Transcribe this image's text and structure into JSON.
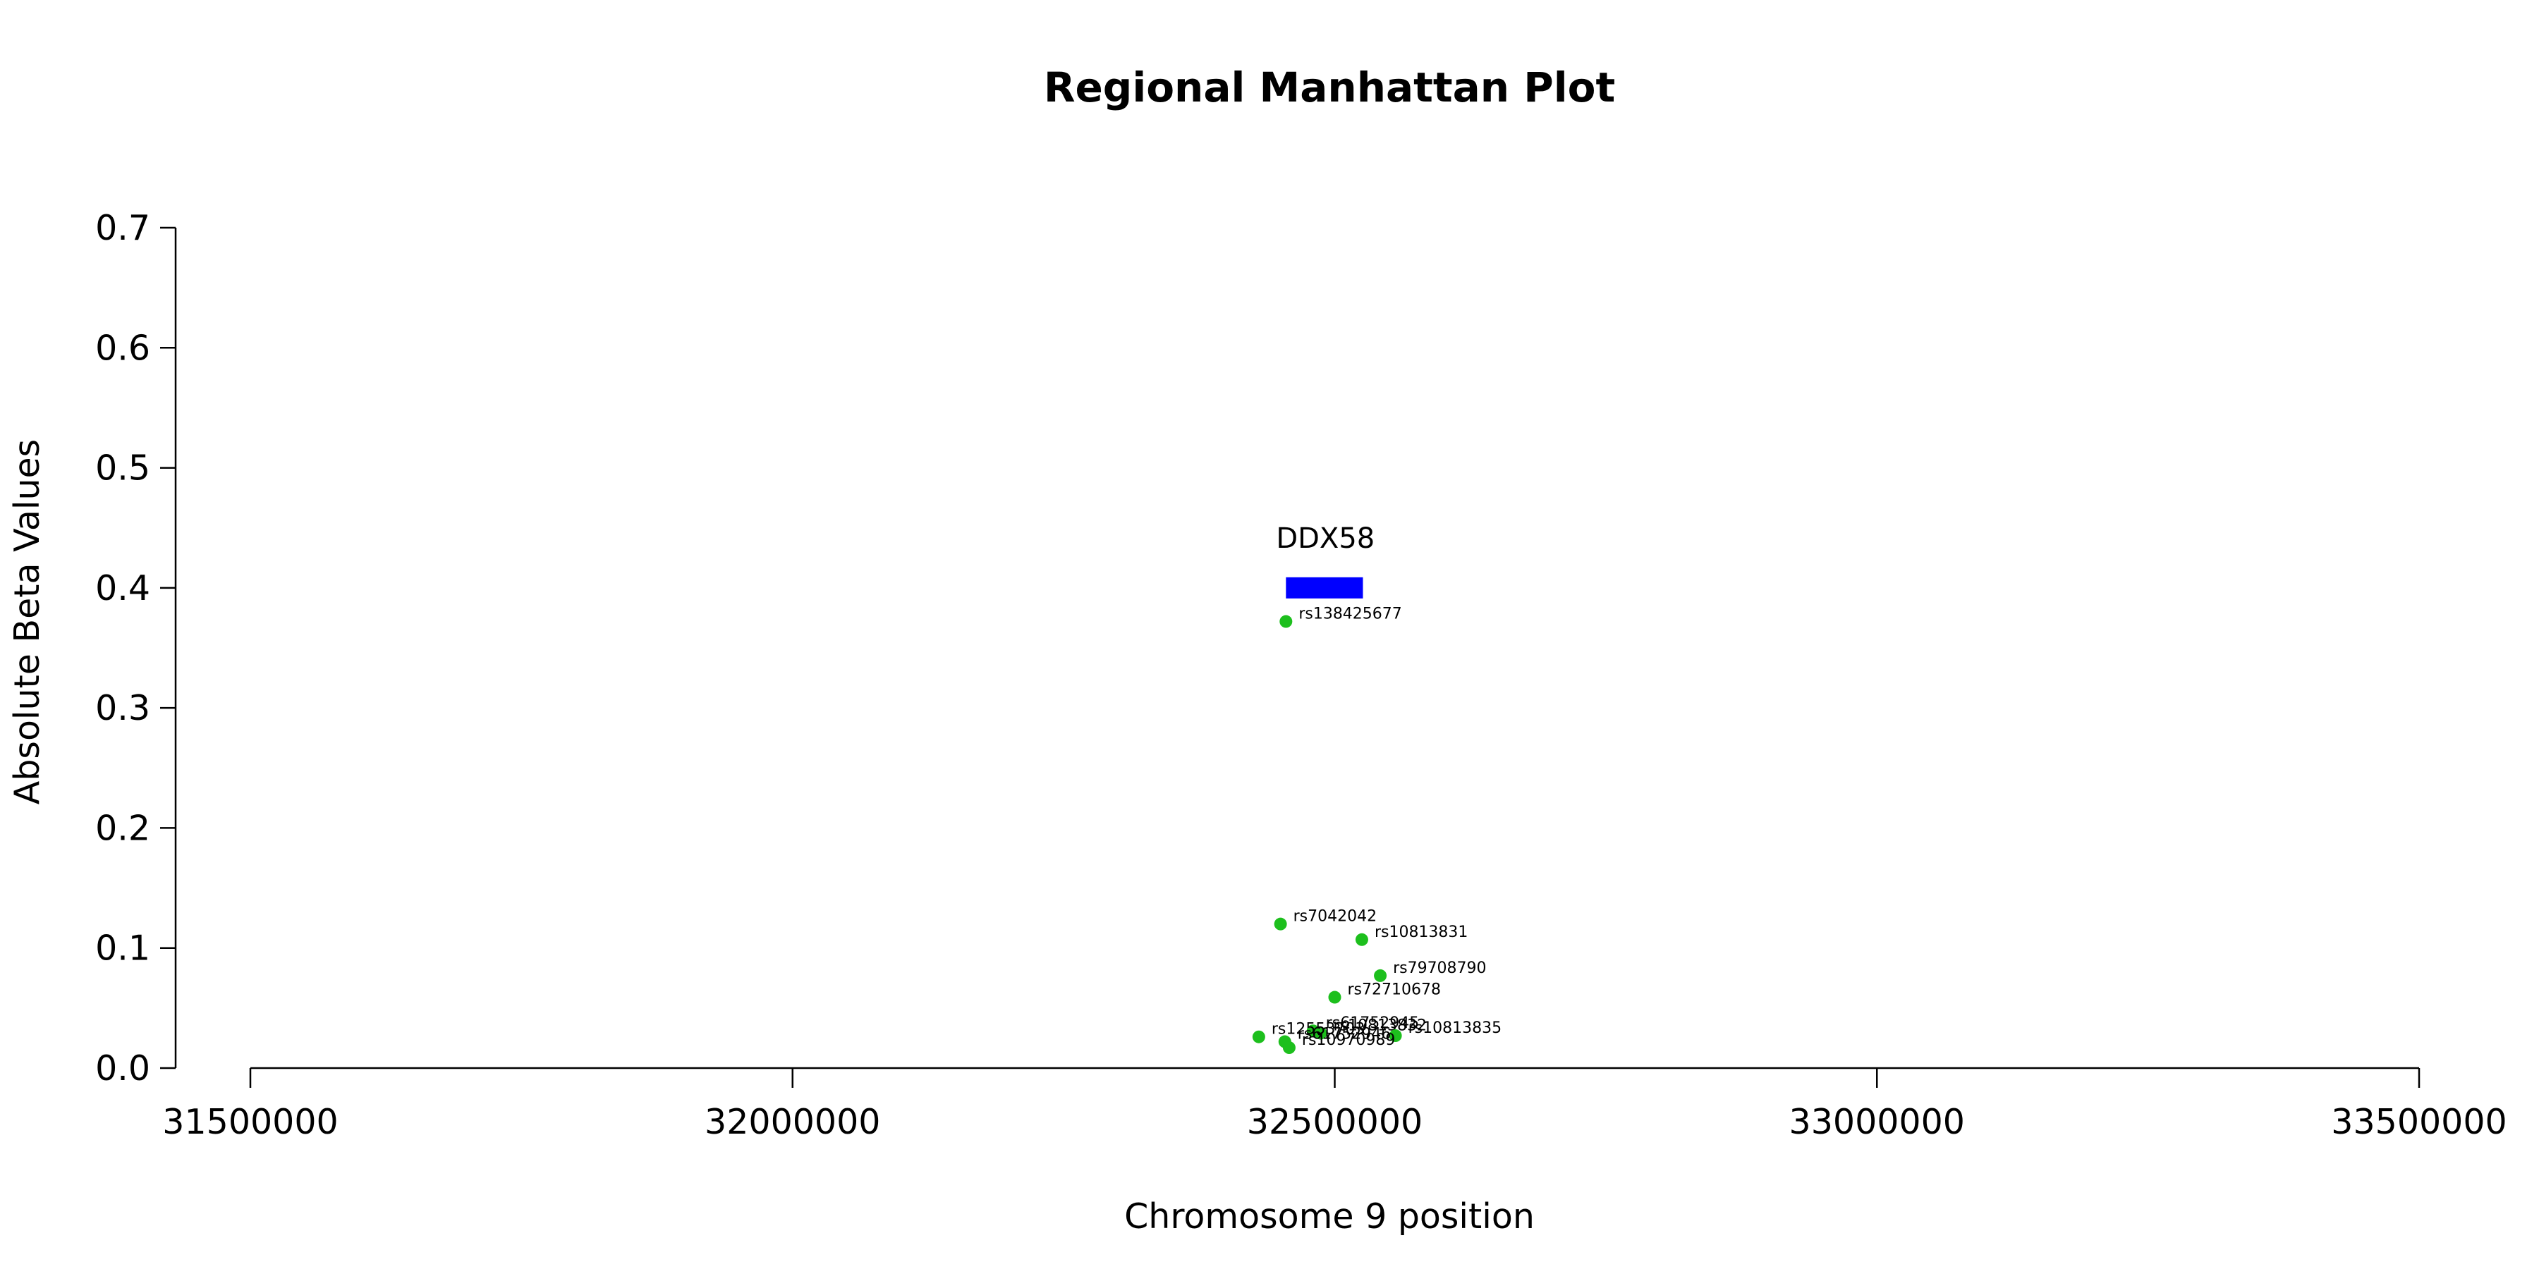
{
  "chart_data": {
    "type": "scatter",
    "title": "Regional Manhattan Plot",
    "xlabel": "Chromosome 9 position",
    "ylabel": "Absolute Beta Values",
    "xlim": [
      31500000,
      33500000
    ],
    "ylim": [
      0.0,
      0.7
    ],
    "xticks": [
      31500000,
      32000000,
      32500000,
      33000000,
      33500000
    ],
    "yticks": [
      0.0,
      0.1,
      0.2,
      0.3,
      0.4,
      0.5,
      0.6,
      0.7
    ],
    "xtick_labels": [
      "31500000",
      "32000000",
      "32500000",
      "33000000",
      "33500000"
    ],
    "ytick_labels": [
      "0.0",
      "0.1",
      "0.2",
      "0.3",
      "0.4",
      "0.5",
      "0.6",
      "0.7"
    ],
    "grid": false,
    "point_color": "#1dbf1d",
    "gene": {
      "name": "DDX58",
      "start": 32455000,
      "end": 32526000,
      "y": 0.4,
      "color": "#0000ff"
    },
    "points": [
      {
        "x": 32455000,
        "y": 0.372,
        "label": "rs138425677"
      },
      {
        "x": 32450000,
        "y": 0.12,
        "label": "rs7042042"
      },
      {
        "x": 32525000,
        "y": 0.107,
        "label": "rs10813831"
      },
      {
        "x": 32542000,
        "y": 0.077,
        "label": "rs79708790"
      },
      {
        "x": 32500000,
        "y": 0.059,
        "label": "rs72710678"
      },
      {
        "x": 32480000,
        "y": 0.031,
        "label": "rs61752945"
      },
      {
        "x": 32487000,
        "y": 0.029,
        "label": "rs10813832"
      },
      {
        "x": 32556000,
        "y": 0.027,
        "label": "rs10813835"
      },
      {
        "x": 32430000,
        "y": 0.026,
        "label": "rs12553703"
      },
      {
        "x": 32454000,
        "y": 0.022,
        "label": "rs61752946"
      },
      {
        "x": 32458000,
        "y": 0.017,
        "label": "rs10970989"
      }
    ]
  }
}
